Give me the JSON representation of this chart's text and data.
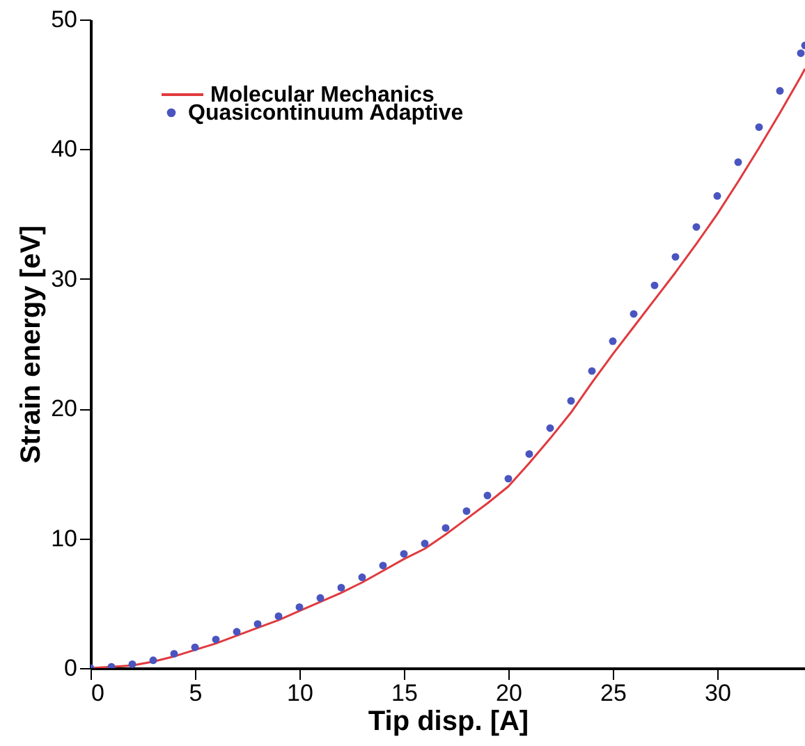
{
  "chart_data": {
    "type": "line",
    "xlabel": "Tip disp. [A]",
    "ylabel": "Strain energy [eV]",
    "xlim": [
      0,
      34.2
    ],
    "ylim": [
      0,
      50
    ],
    "xticks": [
      0,
      5,
      10,
      15,
      20,
      25,
      30
    ],
    "yticks": [
      0,
      10,
      20,
      30,
      40,
      50
    ],
    "grid": false,
    "legend": "top left",
    "x": [
      0,
      1,
      2,
      3,
      4,
      5,
      6,
      7,
      8,
      9,
      10,
      11,
      12,
      13,
      14,
      15,
      16,
      17,
      18,
      19,
      20,
      21,
      22,
      23,
      24,
      25,
      26,
      27,
      28,
      29,
      30,
      31,
      32,
      33,
      34,
      34.2
    ],
    "series": [
      {
        "name": "Molecular Mechanics",
        "color": "#e03a3e",
        "values": [
          0,
          0.1,
          0.2,
          0.5,
          0.9,
          1.4,
          1.9,
          2.5,
          3.1,
          3.7,
          4.4,
          5.1,
          5.8,
          6.6,
          7.5,
          8.4,
          9.2,
          10.3,
          11.5,
          12.7,
          14.0,
          15.8,
          17.7,
          19.7,
          22.0,
          24.2,
          26.3,
          28.4,
          30.5,
          32.7,
          35.0,
          37.5,
          40.1,
          42.8,
          45.6,
          46.2
        ]
      },
      {
        "name": "Quasicontinuum Adaptive",
        "color": "#4a55c0",
        "type": "scatter",
        "marker": "circle",
        "values": [
          0,
          0.1,
          0.3,
          0.6,
          1.1,
          1.6,
          2.2,
          2.8,
          3.4,
          4.0,
          4.7,
          5.4,
          6.2,
          7.0,
          7.9,
          8.8,
          9.6,
          10.8,
          12.1,
          13.3,
          14.6,
          16.5,
          18.5,
          20.6,
          22.9,
          25.2,
          27.3,
          29.5,
          31.7,
          34.0,
          36.4,
          39.0,
          41.7,
          44.5,
          47.4,
          48.0
        ]
      }
    ]
  }
}
